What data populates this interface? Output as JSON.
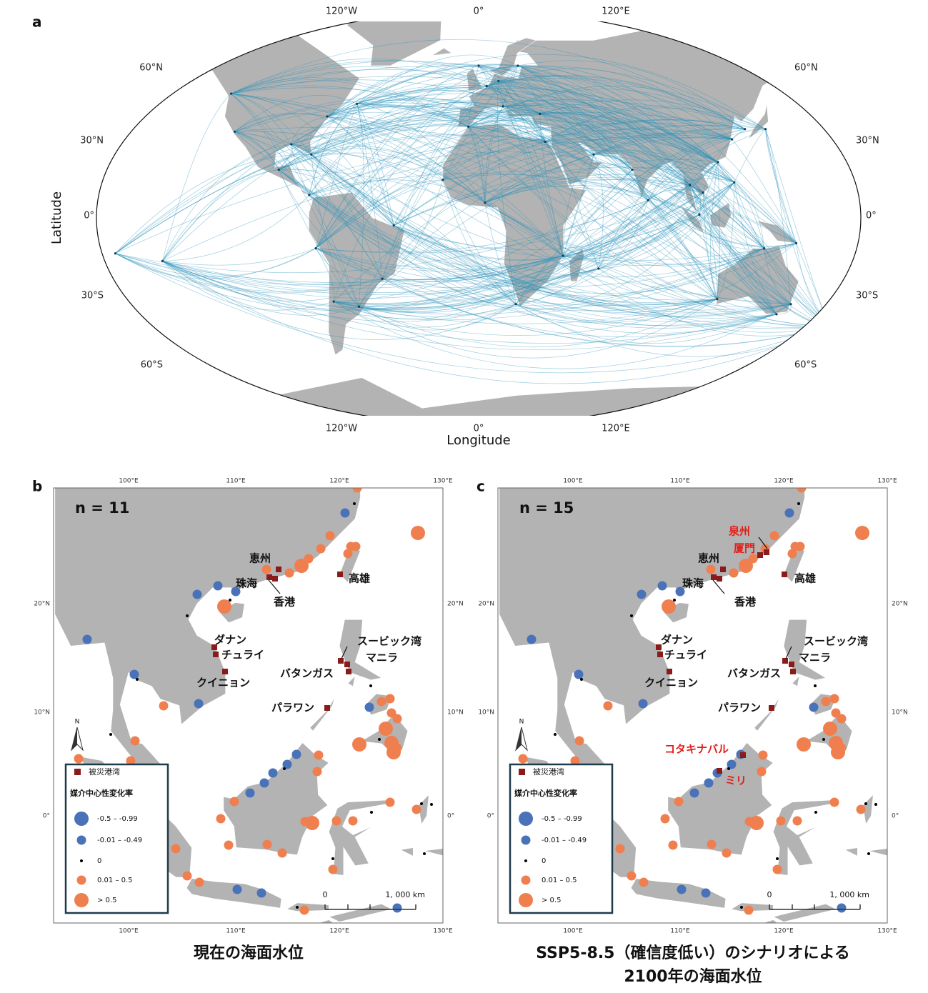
{
  "panel_a": {
    "label": "a",
    "x_axis_title": "Longitude",
    "y_axis_title": "Latitude",
    "lon_labels": [
      "120°W",
      "0°",
      "120°E"
    ],
    "lat_labels": [
      "60°N",
      "30°N",
      "0°",
      "30°S",
      "60°S"
    ]
  },
  "panel_b": {
    "label": "b",
    "n_label": "n = 11",
    "lon_labels": [
      "100°E",
      "110°E",
      "120°E",
      "130°E"
    ],
    "lat_labels": [
      "20°N",
      "10°N",
      "0°"
    ],
    "ports": [
      "恵州",
      "珠海",
      "香港",
      "高雄",
      "ダナン",
      "チュライ",
      "クイニョン",
      "スービック湾",
      "マニラ",
      "バタンガス",
      "パラワン"
    ],
    "caption": [
      "現在の海面水位"
    ]
  },
  "panel_c": {
    "label": "c",
    "n_label": "n = 15",
    "lon_labels": [
      "100°E",
      "110°E",
      "120°E",
      "130°E"
    ],
    "lat_labels": [
      "20°N",
      "10°N",
      "0°"
    ],
    "ports": [
      "泉州",
      "厦門",
      "恵州",
      "珠海",
      "香港",
      "高雄",
      "ダナン",
      "チュライ",
      "クイニョン",
      "スービック湾",
      "マニラ",
      "バタンガス",
      "パラワン",
      "コタキナバル",
      "ミリ"
    ],
    "caption": [
      "SSP5-8.5（確信度低い）のシナリオによる",
      "2100年の海面水位"
    ]
  },
  "legend": {
    "damaged": "被災港湾",
    "title": "媒介中心性変化率",
    "classes": [
      "-0.5 – -0.99",
      "-0.01 – -0.49",
      "0",
      "0.01 – 0.5",
      "> 0.5"
    ]
  },
  "north": "N",
  "scale": [
    "0",
    "1, 000 km"
  ]
}
